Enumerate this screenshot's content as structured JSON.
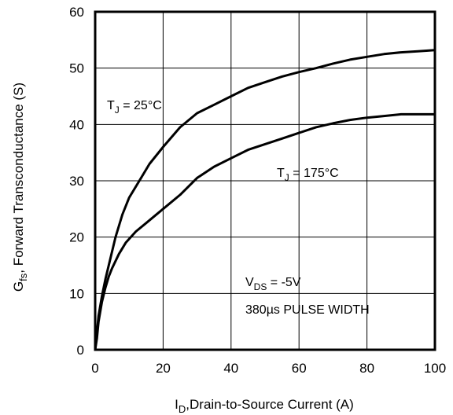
{
  "chart_data": {
    "type": "line",
    "xlabel": {
      "main": "I",
      "sub": "D",
      "rest": ",Drain-to-Source Current (A)"
    },
    "ylabel": {
      "main": "G",
      "sub": "fs",
      "rest": ", Forward Transconductance (S)"
    },
    "xlim": [
      0,
      100
    ],
    "ylim": [
      0,
      60
    ],
    "x_ticks": [
      0,
      20,
      40,
      60,
      80,
      100
    ],
    "y_ticks": [
      0,
      10,
      20,
      30,
      40,
      50,
      60
    ],
    "grid": true,
    "series": [
      {
        "label_main": "T",
        "label_sub": "J",
        "label_rest": " = 25°C",
        "points": [
          [
            0,
            0
          ],
          [
            0.5,
            3
          ],
          [
            1,
            6
          ],
          [
            2,
            9.5
          ],
          [
            3,
            12.5
          ],
          [
            4,
            15
          ],
          [
            5,
            17.5
          ],
          [
            6,
            20
          ],
          [
            8,
            24
          ],
          [
            10,
            27
          ],
          [
            13,
            30
          ],
          [
            16,
            33
          ],
          [
            20,
            36
          ],
          [
            25,
            39.5
          ],
          [
            30,
            42
          ],
          [
            35,
            43.5
          ],
          [
            40,
            45
          ],
          [
            45,
            46.5
          ],
          [
            50,
            47.5
          ],
          [
            55,
            48.5
          ],
          [
            60,
            49.3
          ],
          [
            65,
            50
          ],
          [
            70,
            50.8
          ],
          [
            75,
            51.5
          ],
          [
            80,
            52
          ],
          [
            85,
            52.5
          ],
          [
            90,
            52.8
          ],
          [
            95,
            53
          ],
          [
            100,
            53.2
          ]
        ]
      },
      {
        "label_main": "T",
        "label_sub": "J",
        "label_rest": " = 175°C",
        "points": [
          [
            0,
            0
          ],
          [
            0.5,
            2
          ],
          [
            1,
            5
          ],
          [
            2,
            8.5
          ],
          [
            3,
            11
          ],
          [
            4,
            13
          ],
          [
            5,
            14.5
          ],
          [
            7,
            17
          ],
          [
            9,
            19
          ],
          [
            12,
            21
          ],
          [
            15,
            22.5
          ],
          [
            20,
            25
          ],
          [
            25,
            27.5
          ],
          [
            30,
            30.5
          ],
          [
            35,
            32.5
          ],
          [
            40,
            34
          ],
          [
            45,
            35.5
          ],
          [
            50,
            36.5
          ],
          [
            55,
            37.5
          ],
          [
            60,
            38.5
          ],
          [
            65,
            39.5
          ],
          [
            70,
            40.2
          ],
          [
            75,
            40.8
          ],
          [
            80,
            41.2
          ],
          [
            85,
            41.5
          ],
          [
            90,
            41.8
          ],
          [
            95,
            41.8
          ],
          [
            100,
            41.8
          ]
        ]
      }
    ],
    "annotations": [
      {
        "main": "V",
        "sub": "DS",
        "rest": " = -5V"
      },
      {
        "text": "380µs PULSE WIDTH"
      }
    ]
  }
}
